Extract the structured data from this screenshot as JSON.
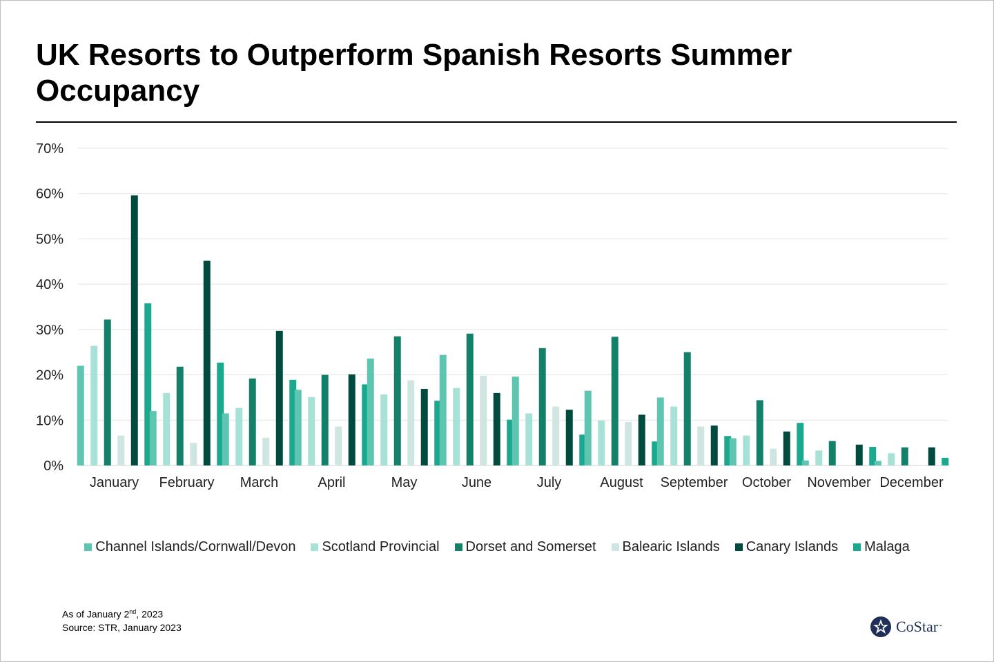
{
  "title": "UK Resorts to Outperform Spanish Resorts Summer Occupancy",
  "footnote": {
    "line1_prefix": "As of January 2",
    "line1_sup": "nd",
    "line1_suffix": ", 2023",
    "line2": "Source: STR, January 2023"
  },
  "logo": {
    "text": "CoStar",
    "tm": "™",
    "icon": "costar-star-icon"
  },
  "colors": {
    "Channel Islands/Cornwall/Devon": "#5dc5b0",
    "Scotland Provincial": "#a8e2d6",
    "Dorset and Somerset": "#13806a",
    "Balearic Islands": "#cfe5e1",
    "Canary Islands": "#004a3e",
    "Malaga": "#1aa88e"
  },
  "chart_data": {
    "type": "bar",
    "categories": [
      "January",
      "February",
      "March",
      "April",
      "May",
      "June",
      "July",
      "August",
      "September",
      "October",
      "November",
      "December"
    ],
    "y_tick_labels": [
      "0%",
      "10%",
      "20%",
      "30%",
      "40%",
      "50%",
      "60%",
      "70%"
    ],
    "ylim": [
      0,
      70
    ],
    "grid": true,
    "legend_position": "bottom",
    "series": [
      {
        "name": "Channel Islands/Cornwall/Devon",
        "values": [
          22,
          12,
          11.5,
          16.7,
          23.6,
          24.4,
          19.6,
          16.5,
          15,
          6,
          1.1,
          1
        ]
      },
      {
        "name": "Scotland Provincial",
        "values": [
          26.4,
          16,
          12.7,
          15.1,
          15.7,
          17.1,
          11.5,
          9.9,
          13,
          6.6,
          3.3,
          2.7
        ]
      },
      {
        "name": "Dorset and Somerset",
        "values": [
          32.2,
          21.8,
          19.2,
          20,
          28.5,
          29.1,
          25.9,
          28.4,
          25,
          14.4,
          5.4,
          4
        ]
      },
      {
        "name": "Balearic Islands",
        "values": [
          6.6,
          5,
          6.1,
          8.6,
          18.8,
          19.8,
          13,
          9.6,
          8.6,
          3.7,
          0,
          0
        ]
      },
      {
        "name": "Canary Islands",
        "values": [
          59.6,
          45.2,
          29.7,
          20.1,
          16.9,
          16,
          12.3,
          11.2,
          8.8,
          7.5,
          4.6,
          4
        ]
      },
      {
        "name": "Malaga",
        "values": [
          35.8,
          22.7,
          18.9,
          17.9,
          14.3,
          10.1,
          6.8,
          5.3,
          6.5,
          9.4,
          4.1,
          1.7
        ]
      }
    ]
  }
}
